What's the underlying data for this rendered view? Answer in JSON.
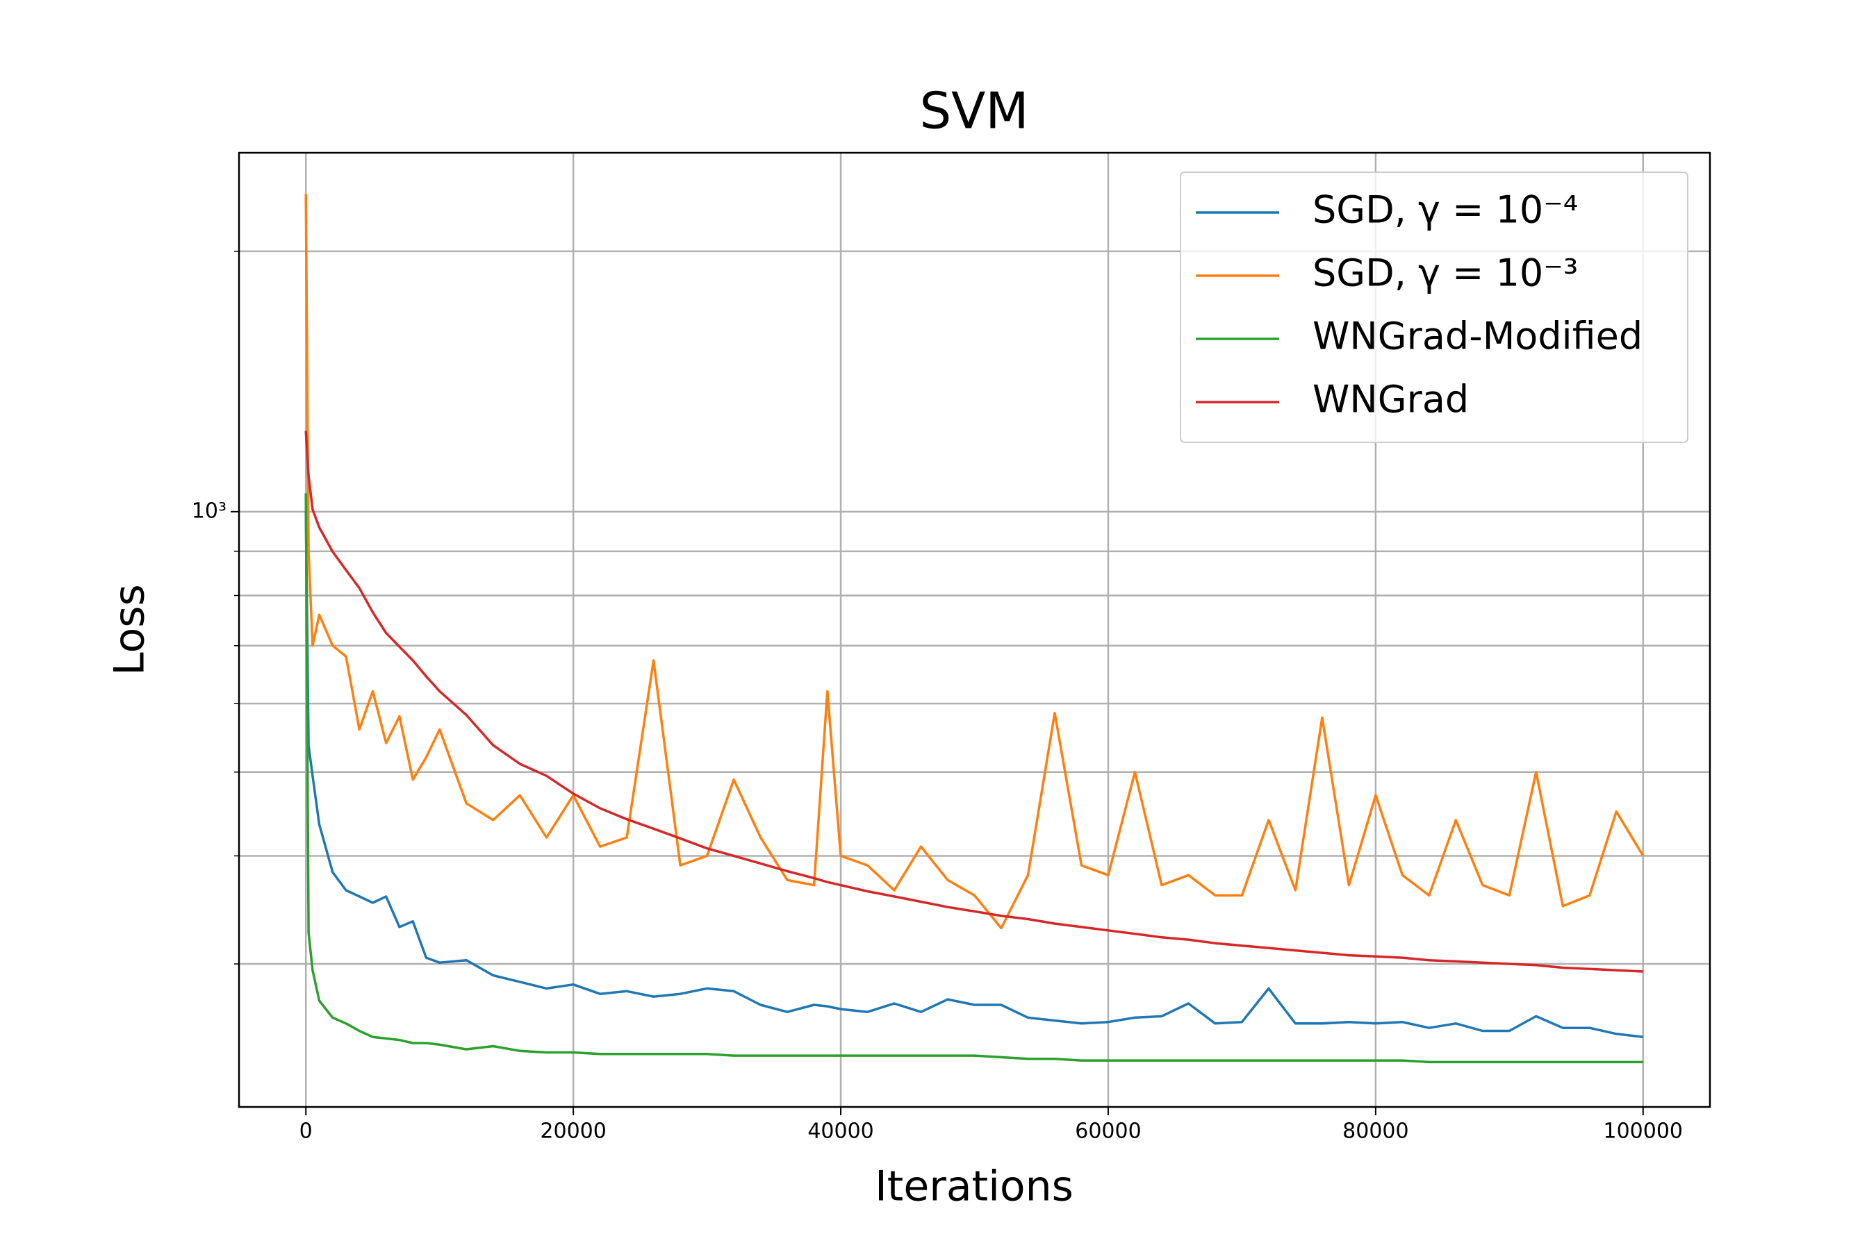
{
  "chart_data": {
    "type": "line",
    "title": "SVM",
    "x_label": "Iterations",
    "y_label": "Loss",
    "y_scale": "log",
    "grid": true,
    "legend_position": "upper right",
    "xlim": [
      -5000,
      105000
    ],
    "ylim": [
      205,
      2600
    ],
    "xticks": [
      0,
      20000,
      40000,
      60000,
      80000,
      100000
    ],
    "yticks": [
      {
        "value": 1000,
        "label": "10³"
      }
    ],
    "y_minor_gridlines": [
      300,
      400,
      500,
      600,
      700,
      800,
      900,
      2000
    ],
    "x": [
      0,
      200,
      500,
      1000,
      2000,
      3000,
      4000,
      5000,
      6000,
      7000,
      8000,
      9000,
      10000,
      12000,
      14000,
      16000,
      18000,
      20000,
      22000,
      24000,
      26000,
      28000,
      30000,
      32000,
      34000,
      36000,
      38000,
      39000,
      40000,
      42000,
      44000,
      46000,
      48000,
      50000,
      52000,
      54000,
      56000,
      58000,
      60000,
      62000,
      64000,
      66000,
      68000,
      70000,
      72000,
      74000,
      76000,
      78000,
      80000,
      82000,
      84000,
      86000,
      88000,
      90000,
      92000,
      94000,
      96000,
      98000,
      100000
    ],
    "series": [
      {
        "name": "SGD, γ = 10⁻⁴",
        "color": "#1f77b4",
        "values": [
          1000,
          537,
          495,
          435,
          383,
          365,
          359,
          353,
          359,
          331,
          336,
          305,
          301,
          303,
          291,
          286,
          281,
          284,
          277,
          279,
          275,
          277,
          281,
          279,
          269,
          264,
          269,
          268,
          266,
          264,
          270,
          264,
          273,
          269,
          269,
          260,
          258,
          256,
          257,
          260,
          261,
          270,
          256,
          257,
          281,
          256,
          256,
          257,
          256,
          257,
          253,
          256,
          251,
          251,
          261,
          253,
          253,
          249,
          247
        ]
      },
      {
        "name": "SGD, γ = 10⁻³",
        "color": "#ff7f0e",
        "values": [
          2330,
          900,
          700,
          760,
          700,
          680,
          560,
          620,
          540,
          580,
          490,
          520,
          560,
          460,
          440,
          470,
          420,
          470,
          410,
          420,
          673,
          390,
          400,
          490,
          420,
          375,
          370,
          620,
          400,
          390,
          365,
          410,
          375,
          360,
          330,
          380,
          585,
          390,
          380,
          500,
          370,
          380,
          360,
          360,
          440,
          365,
          578,
          370,
          470,
          380,
          360,
          440,
          370,
          360,
          500,
          350,
          360,
          450,
          400
        ]
      },
      {
        "name": "WNGrad-Modified",
        "color": "#2ca02c",
        "values": [
          1050,
          326,
          295,
          272,
          260,
          256,
          251,
          247,
          246,
          245,
          243,
          243,
          242,
          239,
          241,
          238,
          237,
          237,
          236,
          236,
          236,
          236,
          236,
          235,
          235,
          235,
          235,
          235,
          235,
          235,
          235,
          235,
          235,
          235,
          234,
          233,
          233,
          232,
          232,
          232,
          232,
          232,
          232,
          232,
          232,
          232,
          232,
          232,
          232,
          232,
          231,
          231,
          231,
          231,
          231,
          231,
          231,
          231,
          231
        ]
      },
      {
        "name": "WNGrad",
        "color": "#d62728",
        "values": [
          1240,
          1100,
          1006,
          959,
          899,
          856,
          816,
          765,
          724,
          698,
          673,
          645,
          620,
          582,
          537,
          511,
          495,
          472,
          454,
          441,
          430,
          419,
          408,
          400,
          392,
          384,
          377,
          373,
          370,
          364,
          359,
          354,
          349,
          345,
          341,
          338,
          334,
          331,
          328,
          325,
          322,
          320,
          317,
          315,
          313,
          311,
          309,
          307,
          306,
          305,
          303,
          302,
          301,
          300,
          299,
          297,
          296,
          295,
          294
        ]
      }
    ]
  }
}
